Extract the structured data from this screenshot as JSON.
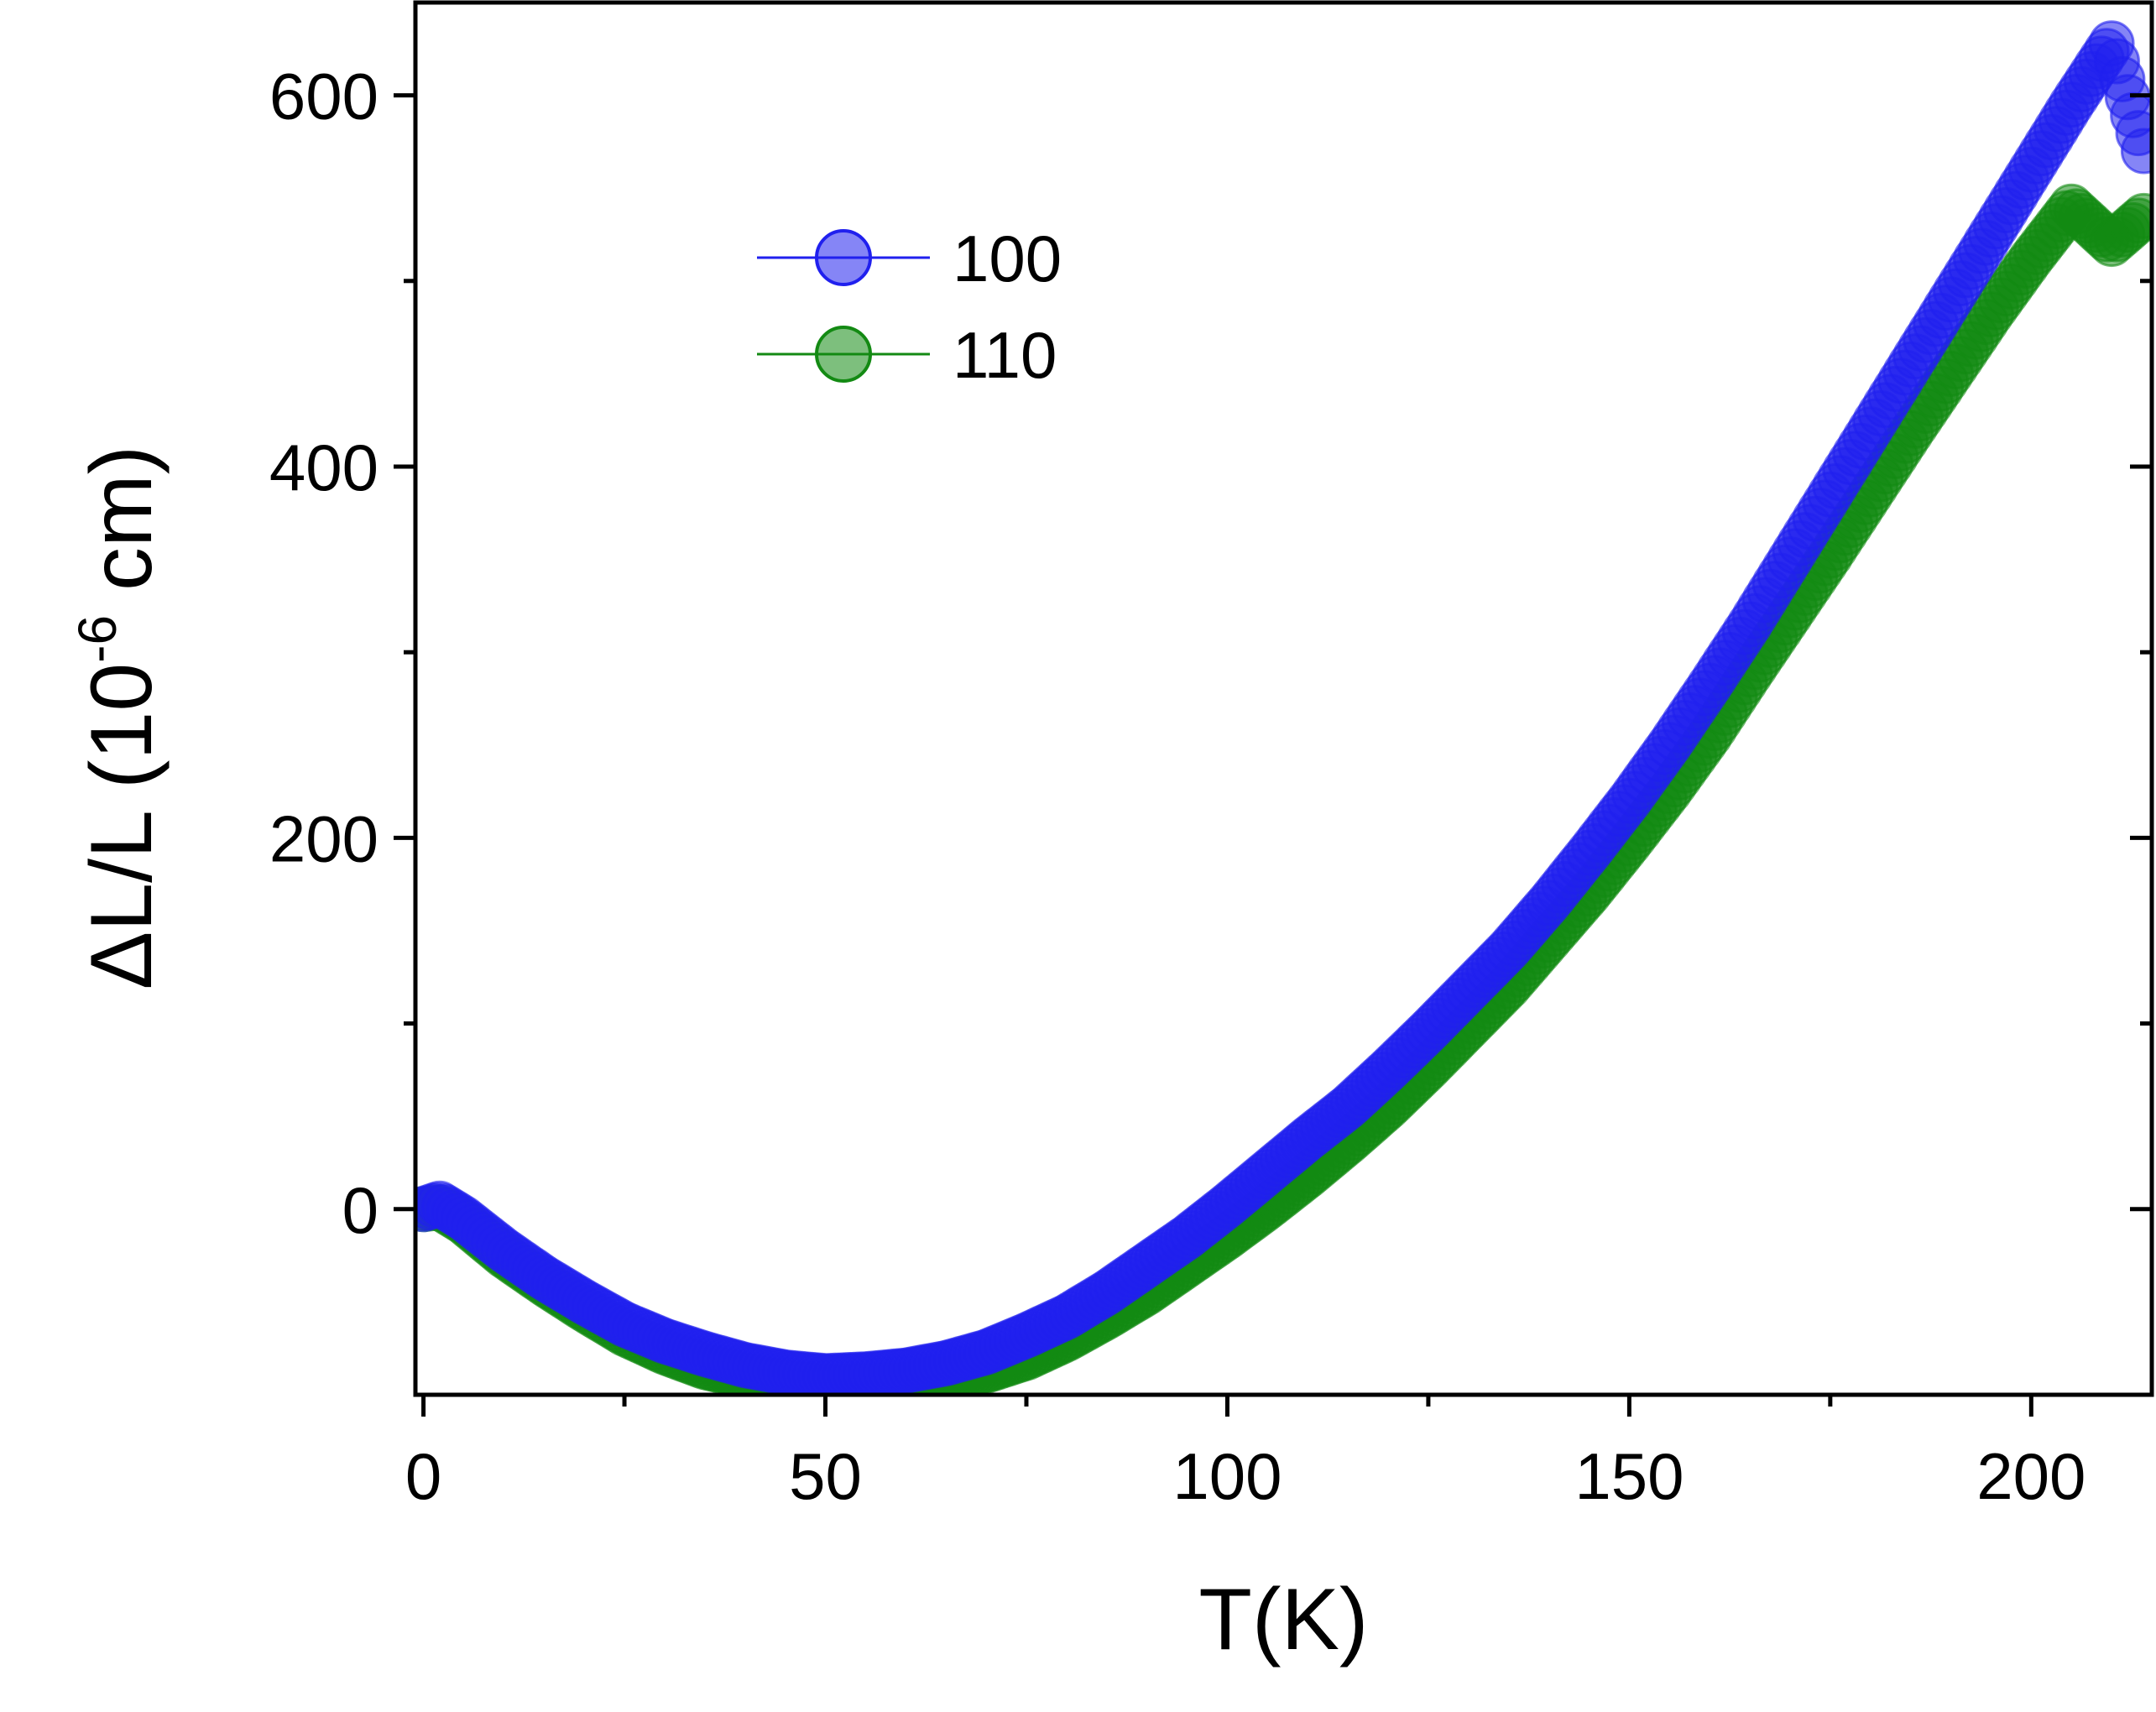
{
  "chart_data": {
    "type": "scatter",
    "title": "",
    "xlabel": "T(K)",
    "ylabel": "ΔL/L (10^-6 cm)",
    "ylabel_parts": {
      "main": "ΔL/L (10",
      "sup": "-6",
      "tail": " cm)"
    },
    "xlim": [
      -1,
      215
    ],
    "ylim": [
      -100,
      650
    ],
    "x_ticks": [
      0,
      50,
      100,
      150,
      200
    ],
    "x_tick_labels": [
      "0",
      "50",
      "100",
      "150",
      "200"
    ],
    "x_minor_ticks": [
      25,
      75,
      125,
      175
    ],
    "y_ticks": [
      0,
      200,
      400,
      600
    ],
    "y_tick_labels": [
      "0",
      "200",
      "400",
      "600"
    ],
    "y_minor_ticks": [
      100,
      300,
      500
    ],
    "legend_position": "upper-left",
    "series": [
      {
        "name": "100",
        "color": "#2020ee",
        "x": [
          0,
          2,
          5,
          10,
          15,
          20,
          25,
          30,
          35,
          40,
          45,
          50,
          55,
          60,
          65,
          70,
          75,
          80,
          85,
          90,
          95,
          100,
          105,
          110,
          115,
          120,
          125,
          130,
          135,
          140,
          145,
          150,
          155,
          160,
          165,
          170,
          175,
          180,
          185,
          190,
          195,
          200,
          205,
          210,
          214
        ],
        "y": [
          0,
          3,
          -5,
          -22,
          -37,
          -50,
          -62,
          -71,
          -78,
          -84,
          -88,
          -90,
          -89,
          -87,
          -83,
          -77,
          -68,
          -58,
          -45,
          -30,
          -15,
          2,
          20,
          38,
          55,
          75,
          96,
          118,
          140,
          165,
          192,
          220,
          250,
          282,
          315,
          350,
          385,
          420,
          455,
          490,
          525,
          560,
          595,
          628,
          570
        ]
      },
      {
        "name": "110",
        "color": "#138a13",
        "x": [
          0,
          2,
          5,
          10,
          15,
          20,
          25,
          30,
          35,
          40,
          45,
          50,
          55,
          60,
          65,
          70,
          75,
          80,
          85,
          90,
          95,
          100,
          105,
          110,
          115,
          120,
          125,
          130,
          135,
          140,
          145,
          150,
          155,
          160,
          165,
          170,
          175,
          180,
          185,
          190,
          195,
          200,
          205,
          210,
          214
        ],
        "y": [
          0,
          1,
          -7,
          -25,
          -40,
          -54,
          -67,
          -77,
          -85,
          -90,
          -94,
          -96,
          -96,
          -95,
          -92,
          -87,
          -80,
          -70,
          -58,
          -45,
          -30,
          -15,
          1,
          18,
          36,
          55,
          76,
          98,
          120,
          145,
          170,
          197,
          225,
          255,
          288,
          320,
          352,
          385,
          418,
          450,
          482,
          512,
          540,
          520,
          535
        ]
      }
    ]
  }
}
